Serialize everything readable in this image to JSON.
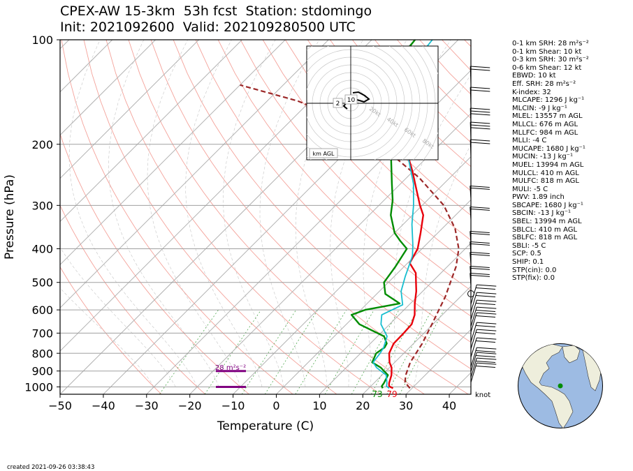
{
  "title": {
    "line1": "CPEX-AW 15-3km  53h fcst  Station: stdomingo",
    "line2": "Init: 2021092600  Valid: 202109280500 UTC"
  },
  "axes": {
    "xlabel": "Temperature (C)",
    "ylabel": "Pressure (hPa)",
    "xticks": [
      -50,
      -40,
      -30,
      -20,
      -10,
      0,
      10,
      20,
      30,
      40
    ],
    "xtick_labels": [
      "−50",
      "−40",
      "−30",
      "−20",
      "−10",
      "0",
      "10",
      "20",
      "30",
      "40"
    ],
    "yticks": [
      1000,
      900,
      800,
      700,
      600,
      500,
      400,
      300,
      200,
      100
    ],
    "ytick_labels": [
      "1000",
      "900",
      "800",
      "700",
      "600",
      "500",
      "400",
      "300",
      "200",
      "100"
    ]
  },
  "chart_data": {
    "type": "line",
    "subtype": "skew-T log-P",
    "xlim": [
      -50,
      45
    ],
    "ylim": [
      1050,
      100
    ],
    "yscale": "log",
    "skew_degrees": 45,
    "series": [
      {
        "color": "#e8000b",
        "points": [
          [
            25.6,
            1009
          ],
          [
            24.2,
            995
          ],
          [
            23.5,
            975
          ],
          [
            22.2,
            925
          ],
          [
            20.5,
            880
          ],
          [
            18.8,
            850
          ],
          [
            16.6,
            800
          ],
          [
            15.4,
            750
          ],
          [
            15.3,
            700
          ],
          [
            15.1,
            660
          ],
          [
            13.6,
            620
          ],
          [
            11.0,
            575
          ],
          [
            8.5,
            530
          ],
          [
            6.4,
            500
          ],
          [
            4.2,
            470
          ],
          [
            0.5,
            440
          ],
          [
            -1.0,
            400
          ],
          [
            -4.0,
            360
          ],
          [
            -7.5,
            320
          ],
          [
            -10.5,
            300
          ],
          [
            -15,
            270
          ],
          [
            -20,
            240
          ],
          [
            -26,
            210
          ],
          [
            -32,
            190
          ],
          [
            -38,
            170
          ],
          [
            -43,
            160
          ]
        ]
      },
      {
        "color": "#008c00",
        "points": [
          [
            23.2,
            1009
          ],
          [
            22.5,
            995
          ],
          [
            22.3,
            975
          ],
          [
            21.4,
            925
          ],
          [
            18.0,
            880
          ],
          [
            14.8,
            850
          ],
          [
            13.6,
            800
          ],
          [
            14.2,
            770
          ],
          [
            13.8,
            750
          ],
          [
            11.5,
            715
          ],
          [
            3.0,
            660
          ],
          [
            -1.0,
            620
          ],
          [
            1.0,
            600
          ],
          [
            7.5,
            575
          ],
          [
            2.0,
            540
          ],
          [
            -1.0,
            500
          ],
          [
            -2.0,
            450
          ],
          [
            -3.5,
            400
          ],
          [
            -6.8,
            380
          ],
          [
            -10,
            360
          ],
          [
            -15,
            320
          ],
          [
            -18,
            290
          ],
          [
            -22,
            260
          ],
          [
            -28,
            220
          ],
          [
            -35,
            185
          ],
          [
            -40,
            165
          ],
          [
            -43,
            150
          ],
          [
            -45,
            140
          ],
          [
            -47,
            128
          ],
          [
            -49,
            115
          ],
          [
            -50,
            100
          ]
        ]
      },
      {
        "color": "#17becf",
        "points": [
          [
            24.7,
            1009
          ],
          [
            23.6,
            995
          ],
          [
            23.0,
            975
          ],
          [
            21.0,
            925
          ],
          [
            17.0,
            880
          ],
          [
            15.0,
            850
          ],
          [
            14.5,
            800
          ],
          [
            14.0,
            770
          ],
          [
            12.2,
            715
          ],
          [
            8.0,
            660
          ],
          [
            6.0,
            620
          ],
          [
            8.5,
            580
          ],
          [
            5.0,
            530
          ],
          [
            2.5,
            480
          ],
          [
            -0.5,
            420
          ],
          [
            -3.0,
            390
          ],
          [
            -8.0,
            340
          ],
          [
            -12,
            300
          ],
          [
            -17,
            260
          ],
          [
            -24,
            220
          ],
          [
            -30,
            185
          ],
          [
            -36,
            165
          ],
          [
            -40,
            150
          ],
          [
            -43,
            130
          ],
          [
            -45,
            115
          ],
          [
            -46,
            100
          ]
        ]
      }
    ],
    "parcel_profile": {
      "color": "#9c2727",
      "points": [
        [
          29.5,
          1009
        ],
        [
          27.0,
          970
        ],
        [
          25.5,
          925
        ],
        [
          23.6,
          850
        ],
        [
          22.0,
          750
        ],
        [
          19.5,
          650
        ],
        [
          16.5,
          550
        ],
        [
          12.0,
          450
        ],
        [
          8.5,
          400
        ],
        [
          3.0,
          350
        ],
        [
          -5.0,
          300
        ],
        [
          -17,
          250
        ],
        [
          -34,
          200
        ],
        [
          -48,
          170
        ],
        [
          -63,
          150
        ],
        [
          -80,
          135
        ]
      ]
    },
    "surface_labels": [
      {
        "text": "73",
        "color": "#008c00"
      },
      {
        "text": "79",
        "color": "#e8000b"
      }
    ],
    "srh_bar": {
      "label": "28 m²s⁻²",
      "color": "#800080"
    },
    "hodograph": {
      "rings": [
        "20kt",
        "40kt",
        "60kt",
        "80kt"
      ],
      "badge_labels": [
        "2",
        "10"
      ],
      "footer_label": "km AGL"
    },
    "wind_unit_label": "knot"
  },
  "indices": [
    "0-1 km SRH: 28 m²s⁻²",
    "0-1 km Shear: 10 kt",
    "0-3 km SRH: 30 m²s⁻²",
    "0-6 km Shear: 12 kt",
    "EBWD: 10 kt",
    "Eff. SRH: 28 m²s⁻²",
    "K-index: 32",
    "MLCAPE: 1296 J kg⁻¹",
    "MLCIN: -9 J kg⁻¹",
    "MLEL: 13557 m AGL",
    "MLLCL: 676 m AGL",
    "MLLFC: 984 m AGL",
    "MLLI: -4 C",
    "MUCAPE: 1680 J kg⁻¹",
    "MUCIN: -13 J kg⁻¹",
    "MUEL: 13994 m AGL",
    "MULCL: 410 m AGL",
    "MULFC: 818 m AGL",
    "MULI: -5 C",
    "PWV: 1.89 inch",
    "SBCAPE: 1680 J kg⁻¹",
    "SBCIN: -13 J kg⁻¹",
    "SBEL: 13994 m AGL",
    "SBLCL: 410 m AGL",
    "SBLFC: 818 m AGL",
    "SBLI: -5 C",
    "SCP: 0.5",
    "SHIP: 0.1",
    "STP(cin): 0.0",
    "STP(fix): 0.0"
  ],
  "globe": {
    "ocean_color": "#9dbbe3",
    "land_color": "#eeeedc",
    "station_color": "#008c00"
  },
  "footer": {
    "created": "created 2021-09-26 03:38:43"
  }
}
